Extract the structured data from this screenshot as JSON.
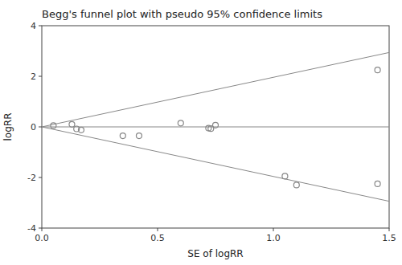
{
  "chart_data": {
    "type": "scatter",
    "title": "Begg's funnel plot with pseudo 95% confidence limits",
    "xlabel": "SE of logRR",
    "ylabel": "logRR",
    "x": [
      0.05,
      0.13,
      0.15,
      0.17,
      0.35,
      0.42,
      0.6,
      0.72,
      0.73,
      0.75,
      1.05,
      1.1,
      1.45,
      1.45
    ],
    "values": [
      0.05,
      0.1,
      -0.08,
      -0.12,
      -0.35,
      -0.35,
      0.15,
      -0.05,
      -0.07,
      0.07,
      -1.95,
      -2.3,
      2.25,
      -2.25
    ],
    "ci_slope": 1.96,
    "hline_y": 0,
    "color": "#888888",
    "marker": "open-circle",
    "grid": false,
    "xlim": [
      0,
      1.5
    ],
    "ylim": [
      -4,
      4
    ],
    "xticks": [
      {
        "value": 0,
        "label": "0.0"
      },
      0.5,
      {
        "value": 1,
        "label": "1.0"
      },
      1.5
    ],
    "yticks": [
      -4,
      -2,
      0,
      2,
      4
    ]
  }
}
